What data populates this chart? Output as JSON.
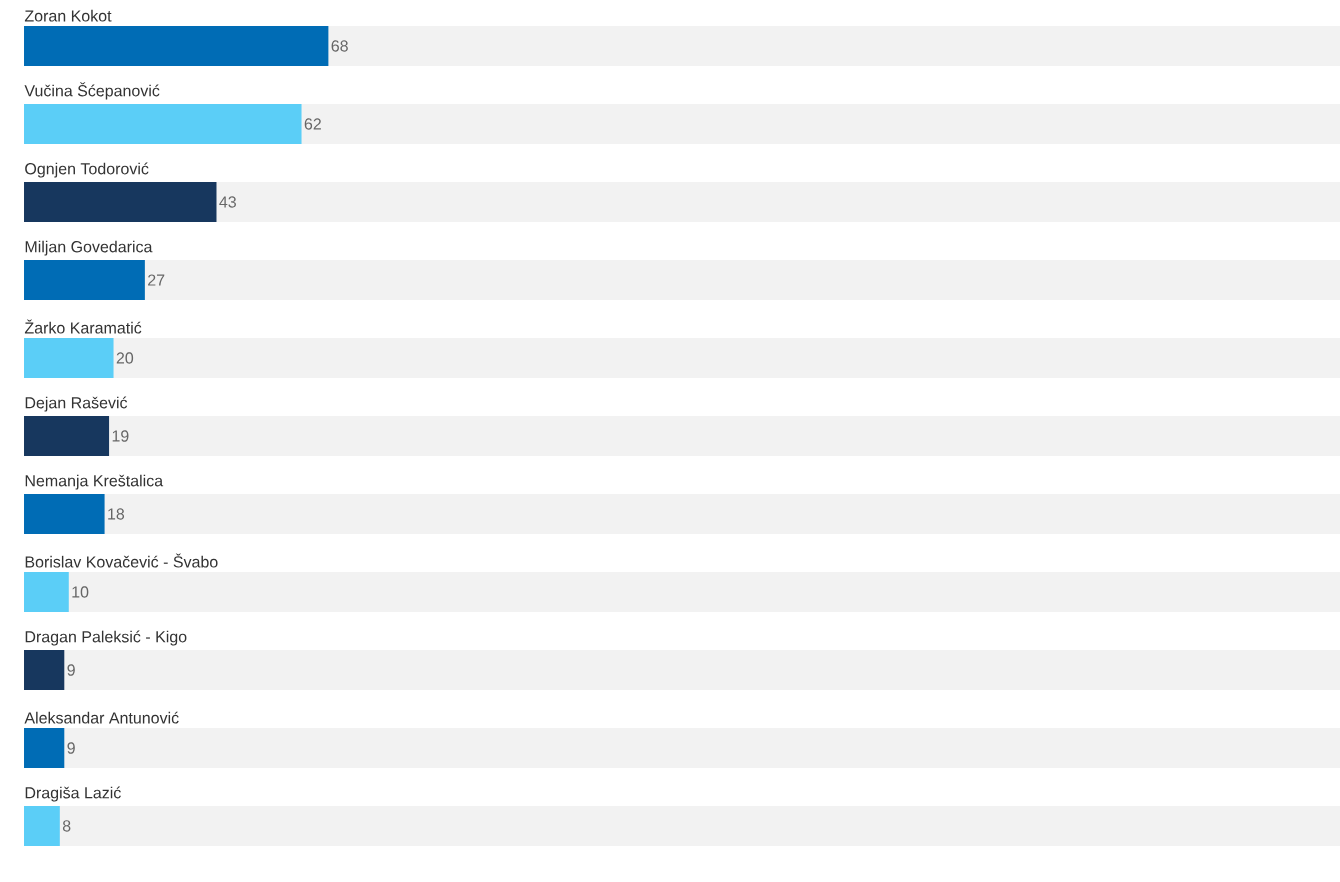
{
  "chart_data": {
    "type": "bar",
    "orientation": "horizontal",
    "categories": [
      "Zoran Kokot",
      "Vučina Šćepanović",
      "Ognjen Todorović",
      "Miljan Govedarica",
      "Žarko Karamatić",
      "Dejan Rašević",
      "Nemanja Kreštalica",
      "Borislav Kovačević - Švabo",
      "Dragan Paleksić - Kigo",
      "Aleksandar Antunović",
      "Dragiša Lazić"
    ],
    "values": [
      68,
      62,
      43,
      27,
      20,
      19,
      18,
      10,
      9,
      9,
      8
    ],
    "colors": [
      "#006cb5",
      "#5bcef7",
      "#17375e",
      "#006cb5",
      "#5bcef7",
      "#17375e",
      "#006cb5",
      "#5bcef7",
      "#17375e",
      "#006cb5",
      "#5bcef7"
    ],
    "xlim": [
      0,
      294
    ],
    "data_labels": true
  }
}
